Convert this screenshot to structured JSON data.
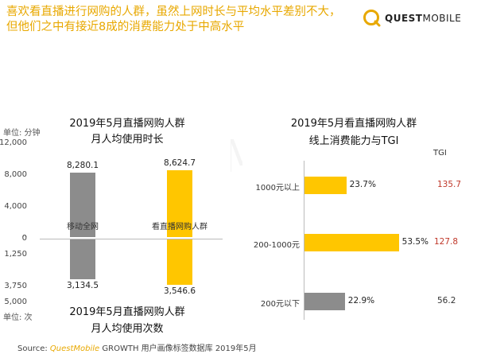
{
  "headline": {
    "line1": "喜欢看直播进行网购的人群，虽然上网时长与平均水平差别不大，",
    "line2": "但他们之中有接近8成的消费能力处于中高水平"
  },
  "logo": {
    "bold": "QUEST",
    "rest": "MOBILE"
  },
  "watermark": "QUESTMOBILE",
  "source": {
    "label": "Source:",
    "brand": "QuestMobile",
    "rest": " GROWTH 用户画像标签数据库 2019年5月"
  },
  "colors": {
    "gray": "#8C8C8C",
    "yellow": "#FFC600",
    "accent": "#E8A800",
    "tgi_red": "#C0392B"
  },
  "chart_data": [
    {
      "type": "bar",
      "title_line1": "2019年5月直播网购人群",
      "title_line2": "月人均使用时长",
      "unit": "单位: 分钟",
      "categories": [
        "移动全网",
        "看直播网购人群"
      ],
      "values": [
        8280.1,
        8624.7
      ],
      "value_labels": [
        "8,280.1",
        "8,624.7"
      ],
      "ylim": [
        0,
        12000
      ],
      "yticks": [
        0,
        4000,
        8000,
        12000
      ],
      "ytick_labels": [
        "0",
        "4,000",
        "8,000",
        "12,000"
      ]
    },
    {
      "type": "bar",
      "title_line1": "2019年5月直播网购人群",
      "title_line2": "月人均使用次数",
      "unit": "单位: 次",
      "categories": [
        "移动全网",
        "看直播网购人群"
      ],
      "values": [
        3134.5,
        3546.6
      ],
      "value_labels": [
        "3,134.5",
        "3,546.6"
      ],
      "ylim": [
        0,
        5000
      ],
      "inverted": true,
      "yticks": [
        0,
        1250,
        3750,
        5000
      ],
      "ytick_labels": [
        "0",
        "1,250",
        "3,750",
        "5,000"
      ]
    },
    {
      "type": "bar",
      "orientation": "horizontal",
      "title_line1": "2019年5月看直播网购人群",
      "title_line2": "线上消费能力与TGI",
      "categories": [
        "1000元以上",
        "200-1000元",
        "200元以下"
      ],
      "values": [
        23.7,
        53.5,
        22.9
      ],
      "value_labels": [
        "23.7%",
        "53.5%",
        "22.9%"
      ],
      "bar_colors": [
        "#FFC600",
        "#FFC600",
        "#8C8C8C"
      ],
      "tgi_header": "TGI",
      "tgi": [
        "135.7",
        "127.8",
        "56.2"
      ],
      "tgi_colors": [
        "#C0392B",
        "#C0392B",
        "#333333"
      ]
    }
  ]
}
